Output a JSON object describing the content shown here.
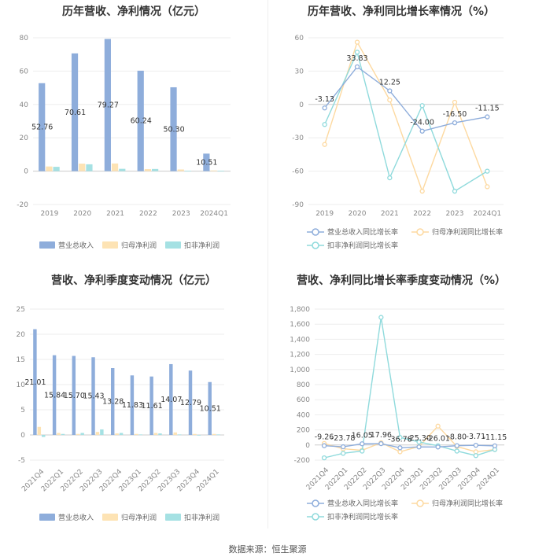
{
  "footer": "数据来源：恒生聚源",
  "colors": {
    "revenue": "#8EADDB",
    "net_profit": "#FDE3B4",
    "deducted": "#A5E1E3",
    "rev_growth": "#8EADDB",
    "np_growth": "#FDD9A0",
    "ded_growth": "#8FDADC"
  },
  "chart_data": [
    {
      "type": "bar",
      "title": "历年营收、净利情况（亿元）",
      "categories": [
        "2019",
        "2020",
        "2021",
        "2022",
        "2023",
        "2024Q1"
      ],
      "ylim": [
        -20,
        80
      ],
      "yticks": [
        -20,
        0,
        20,
        40,
        60,
        80
      ],
      "grid": true,
      "legend_position": "bottom",
      "series": [
        {
          "name": "营业总收入",
          "values": [
            52.76,
            70.61,
            79.27,
            60.24,
            50.3,
            10.51
          ],
          "labels": [
            "52.76",
            "70.61",
            "79.27",
            "60.24",
            "50.30",
            "10.51"
          ]
        },
        {
          "name": "归母净利润",
          "values": [
            2.8,
            4.5,
            4.6,
            1.2,
            1.0,
            0.4
          ]
        },
        {
          "name": "扣非净利润",
          "values": [
            2.6,
            4.1,
            1.4,
            1.3,
            0.2,
            0.3
          ]
        }
      ]
    },
    {
      "type": "line",
      "title": "历年营收、净利同比增长率情况（%）",
      "categories": [
        "2019",
        "2020",
        "2021",
        "2022",
        "2023",
        "2024Q1"
      ],
      "ylim": [
        -90,
        60
      ],
      "yticks": [
        -90,
        -60,
        -30,
        0,
        30,
        60
      ],
      "grid": true,
      "legend_position": "bottom",
      "series": [
        {
          "name": "营业总收入同比增长率",
          "values": [
            -3.13,
            33.83,
            12.25,
            -24.0,
            -16.5,
            -11.15
          ],
          "labels": [
            "-3.13",
            "33.83",
            "12.25",
            "-24.00",
            "-16.50",
            "-11.15"
          ]
        },
        {
          "name": "归母净利润同比增长率",
          "values": [
            -36,
            56,
            4,
            -78,
            2,
            -74
          ]
        },
        {
          "name": "扣非净利润同比增长率",
          "values": [
            -18,
            47,
            -66,
            -1,
            -78,
            -60
          ]
        }
      ]
    },
    {
      "type": "bar",
      "title": "营收、净利季度变动情况（亿元）",
      "categories": [
        "2021Q4",
        "2022Q1",
        "2022Q2",
        "2022Q3",
        "2022Q4",
        "2023Q1",
        "2023Q2",
        "2023Q3",
        "2023Q4",
        "2024Q1"
      ],
      "ylim": [
        -5,
        25
      ],
      "yticks": [
        -5,
        0,
        5,
        10,
        15,
        20,
        25
      ],
      "grid": true,
      "legend_position": "bottom",
      "series": [
        {
          "name": "营业总收入",
          "values": [
            21.01,
            15.84,
            15.7,
            15.43,
            13.28,
            11.83,
            11.61,
            14.07,
            12.79,
            10.51
          ],
          "labels": [
            "21.01",
            "15.84",
            "15.70",
            "15.43",
            "13.28",
            "11.83",
            "11.61",
            "14.07",
            "12.79",
            "10.51"
          ]
        },
        {
          "name": "归母净利润",
          "values": [
            1.6,
            0.4,
            0.2,
            0.6,
            0.3,
            0.2,
            0.4,
            0.5,
            0.2,
            0.2
          ]
        },
        {
          "name": "扣非净利润",
          "values": [
            -0.4,
            0.2,
            0.4,
            1.1,
            0.4,
            0.1,
            0.3,
            0.1,
            -0.1,
            0.1
          ]
        }
      ]
    },
    {
      "type": "line",
      "title": "营收、净利同比增长率季度变动情况（%）",
      "categories": [
        "2021Q4",
        "2022Q1",
        "2022Q2",
        "2022Q3",
        "2022Q4",
        "2023Q1",
        "2023Q2",
        "2023Q3",
        "2023Q4",
        "2024Q1"
      ],
      "ylim": [
        -200,
        1800
      ],
      "yticks": [
        -200,
        0,
        200,
        400,
        600,
        800,
        1000,
        1200,
        1400,
        1600,
        1800
      ],
      "ytick_labels": [
        "-200",
        "0",
        "200",
        "400",
        "600",
        "800",
        "1,000",
        "1,200",
        "1,400",
        "1,600",
        "1,800"
      ],
      "grid": true,
      "legend_position": "bottom",
      "series": [
        {
          "name": "营业总收入同比增长率",
          "values": [
            -9.26,
            -23.78,
            16.05,
            17.96,
            -36.78,
            -25.3,
            -26.01,
            -8.8,
            -3.71,
            -11.15
          ],
          "labels": [
            "-9.26",
            "-23.78",
            "16.05",
            "17.96",
            "-36.78",
            "-25.30",
            "-26.01",
            "-8.80",
            "-3.71",
            "-11.15"
          ]
        },
        {
          "name": "归母净利润同比增长率",
          "values": [
            20,
            -50,
            -70,
            30,
            -90,
            -20,
            250,
            -20,
            -90,
            -60
          ]
        },
        {
          "name": "扣非净利润同比增长率",
          "values": [
            -170,
            -110,
            -80,
            1690,
            100,
            40,
            -10,
            -80,
            -140,
            -60
          ]
        }
      ]
    }
  ]
}
